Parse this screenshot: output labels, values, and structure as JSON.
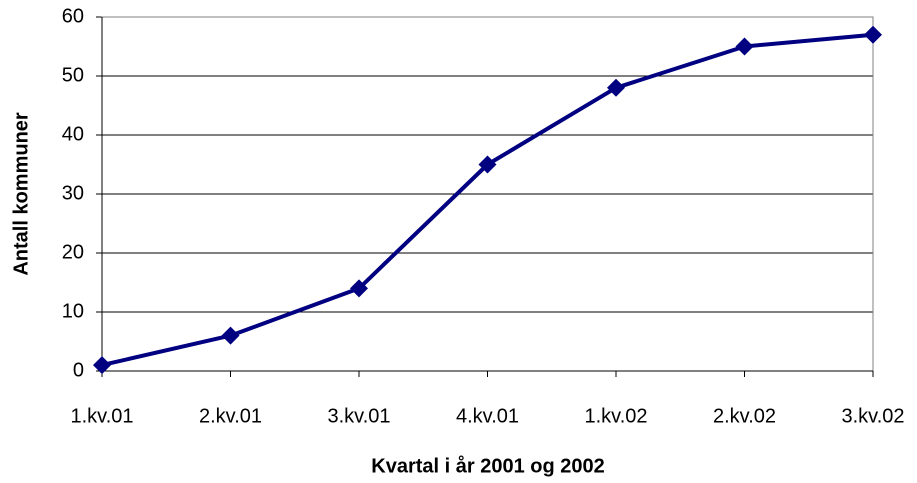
{
  "chart_data": {
    "type": "line",
    "x_label": "Kvartal i år 2001 og 2002",
    "y_label": "Antall kommuner",
    "categories": [
      "1.kv.01",
      "2.kv.01",
      "3.kv.01",
      "4.kv.01",
      "1.kv.02",
      "2.kv.02",
      "3.kv.02"
    ],
    "values": [
      1,
      6,
      14,
      35,
      48,
      55,
      57
    ],
    "color": "#000080",
    "marker": "diamond",
    "ylim": [
      0,
      60
    ],
    "yticks": [
      0,
      10,
      20,
      30,
      40,
      50,
      60
    ],
    "grid": true
  }
}
